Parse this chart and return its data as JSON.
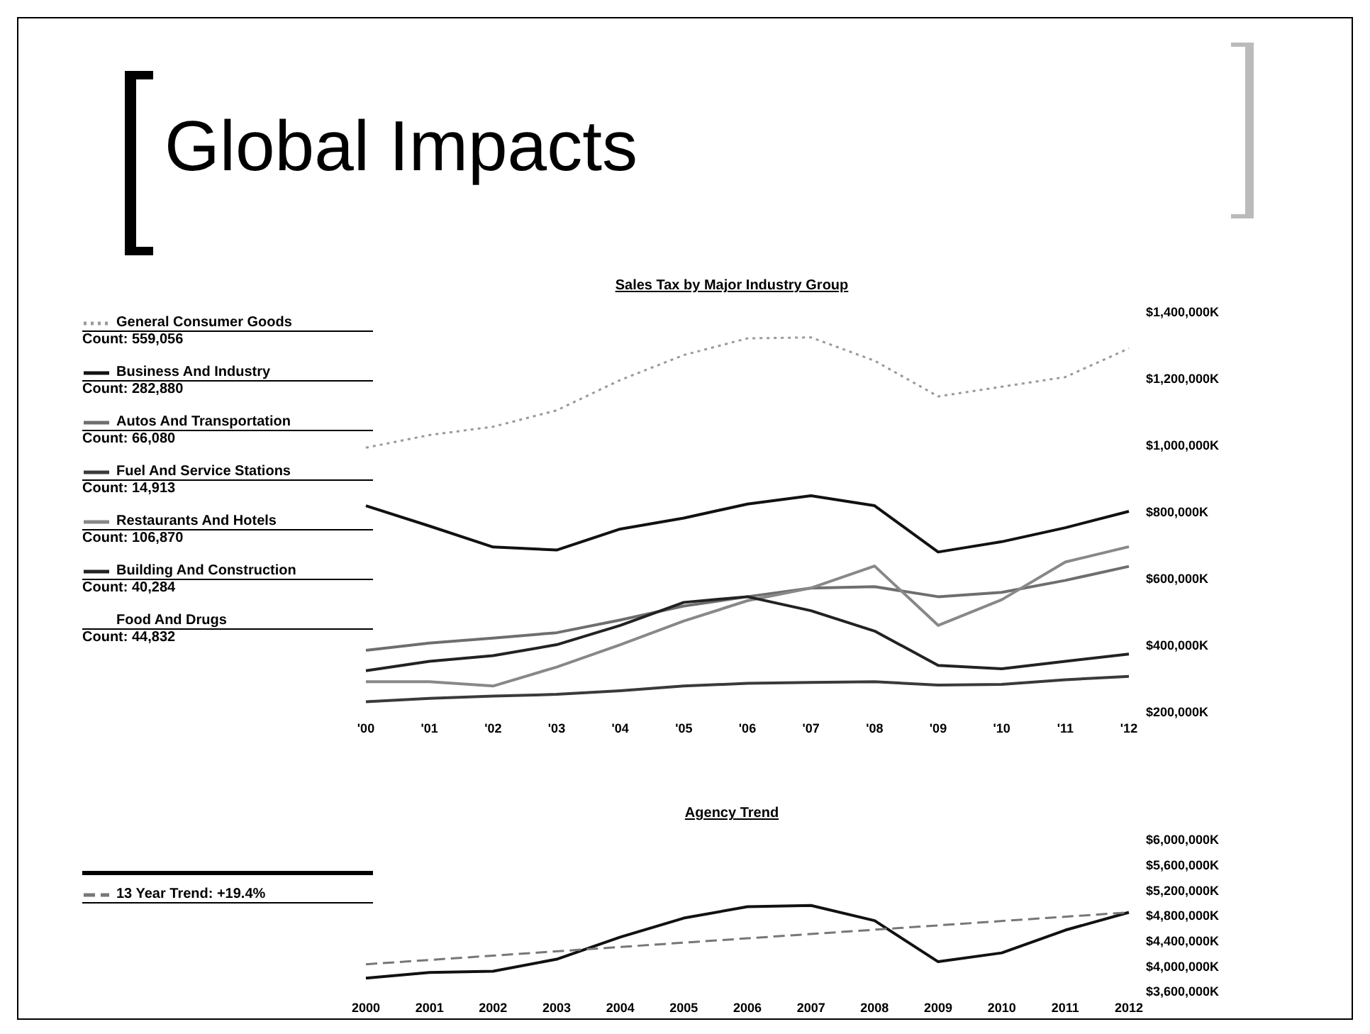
{
  "chart_data": [
    {
      "type": "line",
      "title": "Sales Tax by Major Industry Group",
      "annotations": [
        "Global Impacts",
        "Count: 559,056",
        "Count: 282,880",
        "Count: 66,080",
        "Count: 14,913",
        "Count: 106,870",
        "Count: 40,284",
        "Food And Drugs",
        "Count: 44,832"
      ],
      "categories": [
        "'00",
        "'01",
        "'02",
        "'03",
        "'04",
        "'05",
        "'06",
        "'07",
        "'08",
        "'09",
        "'10",
        "'11",
        "'12"
      ],
      "ylim": [
        200000,
        1400000
      ],
      "yticks": [
        {
          "value": 200000,
          "label": "$200,000K"
        },
        {
          "value": 400000,
          "label": "$400,000K"
        },
        {
          "value": 600000,
          "label": "$600,000K"
        },
        {
          "value": 800000,
          "label": "$800,000K"
        },
        {
          "value": 1000000,
          "label": "$1,000,000K"
        },
        {
          "value": 1200000,
          "label": "$1,200,000K"
        },
        {
          "value": 1400000,
          "label": "$1,400,000K"
        }
      ],
      "legend": "left",
      "grid": false,
      "marker": "none",
      "series": [
        {
          "name": "General Consumer Goods",
          "color": "#9a9a9a",
          "line_style": "dotted",
          "values": [
            993000,
            1031000,
            1056000,
            1105000,
            1196000,
            1271000,
            1321000,
            1324000,
            1254000,
            1147000,
            1176000,
            1205000,
            1291000
          ]
        },
        {
          "name": "Business And Industry",
          "color": "#111111",
          "line_style": "solid",
          "values": [
            819000,
            758000,
            695000,
            686000,
            749000,
            782000,
            824000,
            849000,
            819000,
            680000,
            711000,
            753000,
            802000
          ]
        },
        {
          "name": "Autos And Transportation",
          "color": "#6e6e6e",
          "line_style": "solid",
          "values": [
            385000,
            407000,
            422000,
            438000,
            476000,
            518000,
            546000,
            572000,
            576000,
            546000,
            559000,
            595000,
            637000
          ]
        },
        {
          "name": "Fuel And Service Stations",
          "color": "#3a3a3a",
          "line_style": "solid",
          "values": [
            231000,
            241000,
            248000,
            253000,
            264000,
            278000,
            286000,
            289000,
            291000,
            281000,
            283000,
            297000,
            307000
          ]
        },
        {
          "name": "Restaurants And Hotels",
          "color": "#888888",
          "line_style": "solid",
          "values": [
            291000,
            291000,
            278000,
            335000,
            402000,
            473000,
            534000,
            572000,
            638000,
            460000,
            537000,
            650000,
            696000
          ]
        },
        {
          "name": "Building And Construction",
          "color": "#222222",
          "line_style": "solid",
          "values": [
            324000,
            352000,
            369000,
            402000,
            460000,
            529000,
            546000,
            504000,
            443000,
            340000,
            330000,
            352000,
            374000
          ]
        }
      ]
    },
    {
      "type": "line",
      "title": "Agency Trend",
      "categories": [
        "2000",
        "2001",
        "2002",
        "2003",
        "2004",
        "2005",
        "2006",
        "2007",
        "2008",
        "2009",
        "2010",
        "2011",
        "2012"
      ],
      "ylim": [
        3600000,
        6000000
      ],
      "yticks": [
        {
          "value": 3600000,
          "label": "$3,600,000K"
        },
        {
          "value": 4000000,
          "label": "$4,000,000K"
        },
        {
          "value": 4400000,
          "label": "$4,400,000K"
        },
        {
          "value": 4800000,
          "label": "$4,800,000K"
        },
        {
          "value": 5200000,
          "label": "$5,200,000K"
        },
        {
          "value": 5600000,
          "label": "$5,600,000K"
        },
        {
          "value": 6000000,
          "label": "$6,000,000K"
        }
      ],
      "legend": "left",
      "grid": false,
      "marker": "none",
      "series": [
        {
          "color": "#111111",
          "line_style": "solid",
          "values": [
            3810000,
            3900000,
            3920000,
            4110000,
            4460000,
            4760000,
            4940000,
            4960000,
            4720000,
            4070000,
            4210000,
            4570000,
            4850000
          ]
        },
        {
          "name": "13 Year Trend: +19.4%",
          "color": "#777777",
          "line_style": "dashed",
          "values": [
            4030000,
            null,
            null,
            null,
            null,
            null,
            null,
            null,
            null,
            null,
            null,
            null,
            4850000
          ]
        }
      ]
    }
  ]
}
